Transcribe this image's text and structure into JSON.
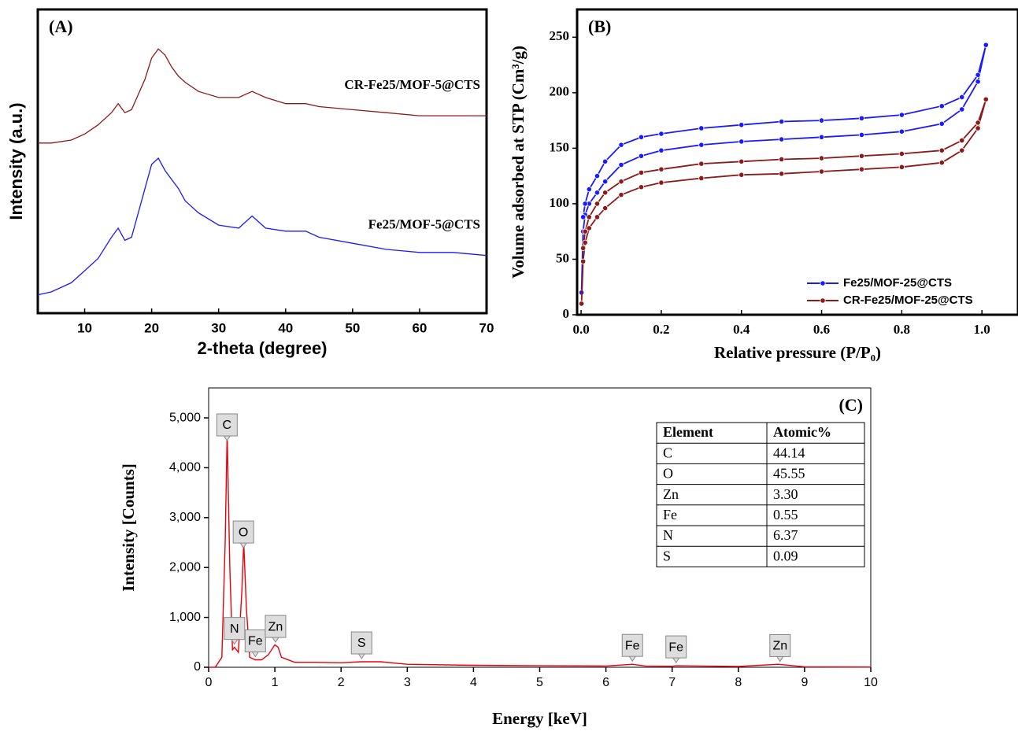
{
  "chart_data": [
    {
      "type": "line",
      "title": "(A)",
      "xlabel": "2-theta (degree)",
      "ylabel": "Intensity (a.u.)",
      "x": [
        3,
        5,
        8,
        10,
        12,
        14,
        15,
        16,
        17,
        18,
        19,
        20,
        21,
        22,
        23,
        24,
        25,
        27,
        30,
        33,
        35,
        37,
        40,
        43,
        45,
        50,
        55,
        60,
        65,
        70
      ],
      "series": [
        {
          "name": "CR-Fe25/MOF-5@CTS",
          "color": "#8b1a1a",
          "values": [
            56,
            56,
            57,
            59,
            62,
            66,
            69,
            66,
            67,
            72,
            77,
            84,
            87,
            85,
            81,
            78,
            76,
            73,
            71,
            71,
            73,
            71,
            69,
            69,
            68,
            67,
            66,
            65,
            65,
            65
          ]
        },
        {
          "name": "Fe25/MOF-5@CTS",
          "color": "#1a1aff",
          "values": [
            6,
            7,
            10,
            14,
            18,
            25,
            28,
            24,
            25,
            33,
            41,
            49,
            51,
            47,
            44,
            41,
            37,
            33,
            29,
            28,
            32,
            28,
            27,
            27,
            25,
            23,
            21,
            20,
            20,
            19
          ]
        }
      ],
      "xlim": [
        3,
        70
      ],
      "xticks": [
        10,
        20,
        30,
        40,
        50,
        60,
        70
      ],
      "ylim": [
        0,
        100
      ]
    },
    {
      "type": "line",
      "title": "(B)",
      "xlabel": "Relative pressure (P/P₀)",
      "ylabel": "Volume adsorbed at STP (Cm³/g)",
      "series": [
        {
          "name": "Fe25/MOF-25@CTS",
          "color": "#1a1aff",
          "x": [
            0.001,
            0.005,
            0.01,
            0.02,
            0.04,
            0.06,
            0.1,
            0.15,
            0.2,
            0.3,
            0.4,
            0.5,
            0.6,
            0.7,
            0.8,
            0.9,
            0.95,
            0.99,
            1.01,
            0.99,
            0.95,
            0.9,
            0.8,
            0.7,
            0.6,
            0.5,
            0.4,
            0.3,
            0.2,
            0.15,
            0.1,
            0.06,
            0.04,
            0.02,
            0.01,
            0.005
          ],
          "values": [
            20,
            75,
            90,
            100,
            110,
            120,
            135,
            143,
            148,
            153,
            156,
            158,
            160,
            162,
            165,
            172,
            185,
            210,
            243,
            216,
            196,
            188,
            180,
            177,
            175,
            174,
            171,
            168,
            163,
            160,
            153,
            138,
            125,
            113,
            100,
            88
          ]
        },
        {
          "name": "CR-Fe25/MOF-25@CTS",
          "color": "#8b1a1a",
          "x": [
            0.001,
            0.005,
            0.01,
            0.02,
            0.04,
            0.06,
            0.1,
            0.15,
            0.2,
            0.3,
            0.4,
            0.5,
            0.6,
            0.7,
            0.8,
            0.9,
            0.95,
            0.99,
            1.01,
            0.99,
            0.95,
            0.9,
            0.8,
            0.7,
            0.6,
            0.5,
            0.4,
            0.3,
            0.2,
            0.15,
            0.1,
            0.06,
            0.04,
            0.02,
            0.01,
            0.005
          ],
          "values": [
            10,
            48,
            65,
            78,
            88,
            96,
            108,
            115,
            119,
            123,
            126,
            127,
            129,
            131,
            133,
            137,
            148,
            168,
            194,
            173,
            157,
            148,
            145,
            143,
            141,
            140,
            138,
            136,
            131,
            128,
            120,
            110,
            100,
            88,
            75,
            60
          ]
        }
      ],
      "xlim": [
        -0.01,
        1.09
      ],
      "xticks": [
        {
          "value": 0,
          "label": "0.0"
        },
        {
          "value": 0.2,
          "label": "0.2"
        },
        {
          "value": 0.4,
          "label": "0.4"
        },
        {
          "value": 0.6,
          "label": "0.6"
        },
        {
          "value": 0.8,
          "label": "0.8"
        },
        {
          "value": 1,
          "label": "1.0"
        }
      ],
      "ylim": [
        0,
        275
      ],
      "yticks": [
        0,
        50,
        100,
        150,
        200,
        250
      ],
      "legend": "lower right"
    },
    {
      "type": "line",
      "title": "(C)",
      "xlabel": "Energy [keV]",
      "ylabel": "Intensity [Counts]",
      "x": [
        0,
        0.1,
        0.2,
        0.25,
        0.28,
        0.32,
        0.36,
        0.39,
        0.45,
        0.5,
        0.53,
        0.57,
        0.62,
        0.7,
        0.8,
        0.9,
        1.0,
        1.05,
        1.1,
        1.3,
        1.6,
        2.0,
        2.3,
        2.6,
        3.0,
        4,
        5,
        6,
        6.4,
        6.6,
        7,
        7.06,
        8,
        8.6,
        9,
        10
      ],
      "series": [
        {
          "color": "#e8000b",
          "values": [
            0,
            0,
            200,
            2500,
            4700,
            2000,
            350,
            400,
            300,
            1500,
            2500,
            1200,
            200,
            150,
            150,
            250,
            450,
            400,
            200,
            100,
            100,
            90,
            110,
            110,
            60,
            40,
            30,
            25,
            60,
            25,
            20,
            30,
            15,
            60,
            10,
            5
          ]
        }
      ],
      "xlim": [
        0,
        10
      ],
      "xticks": [
        0,
        1,
        2,
        3,
        4,
        5,
        6,
        7,
        8,
        9,
        10
      ],
      "ylim": [
        0,
        5600
      ],
      "yticks": [
        0,
        {
          "value": 1000,
          "label": "1,000"
        },
        {
          "value": 2000,
          "label": "2,000"
        },
        {
          "value": 3000,
          "label": "3,000"
        },
        {
          "value": 4000,
          "label": "4,000"
        },
        {
          "value": 5000,
          "label": "5,000"
        }
      ],
      "peaks": [
        {
          "label": "C",
          "x": 0.277
        },
        {
          "label": "O",
          "x": 0.525
        },
        {
          "label": "N",
          "x": 0.39
        },
        {
          "label": "Fe",
          "x": 0.705
        },
        {
          "label": "Zn",
          "x": 1.01
        },
        {
          "label": "S",
          "x": 2.31
        },
        {
          "label": "Fe",
          "x": 6.4
        },
        {
          "label": "Fe",
          "x": 7.06
        },
        {
          "label": "Zn",
          "x": 8.63
        }
      ],
      "table": {
        "columns": [
          "Element",
          "Atomic%"
        ],
        "rows": [
          [
            "C",
            "44.14"
          ],
          [
            "O",
            "45.55"
          ],
          [
            "Zn",
            "3.30"
          ],
          [
            "Fe",
            "0.55"
          ],
          [
            "N",
            "6.37"
          ],
          [
            "S",
            "0.09"
          ]
        ]
      }
    }
  ]
}
